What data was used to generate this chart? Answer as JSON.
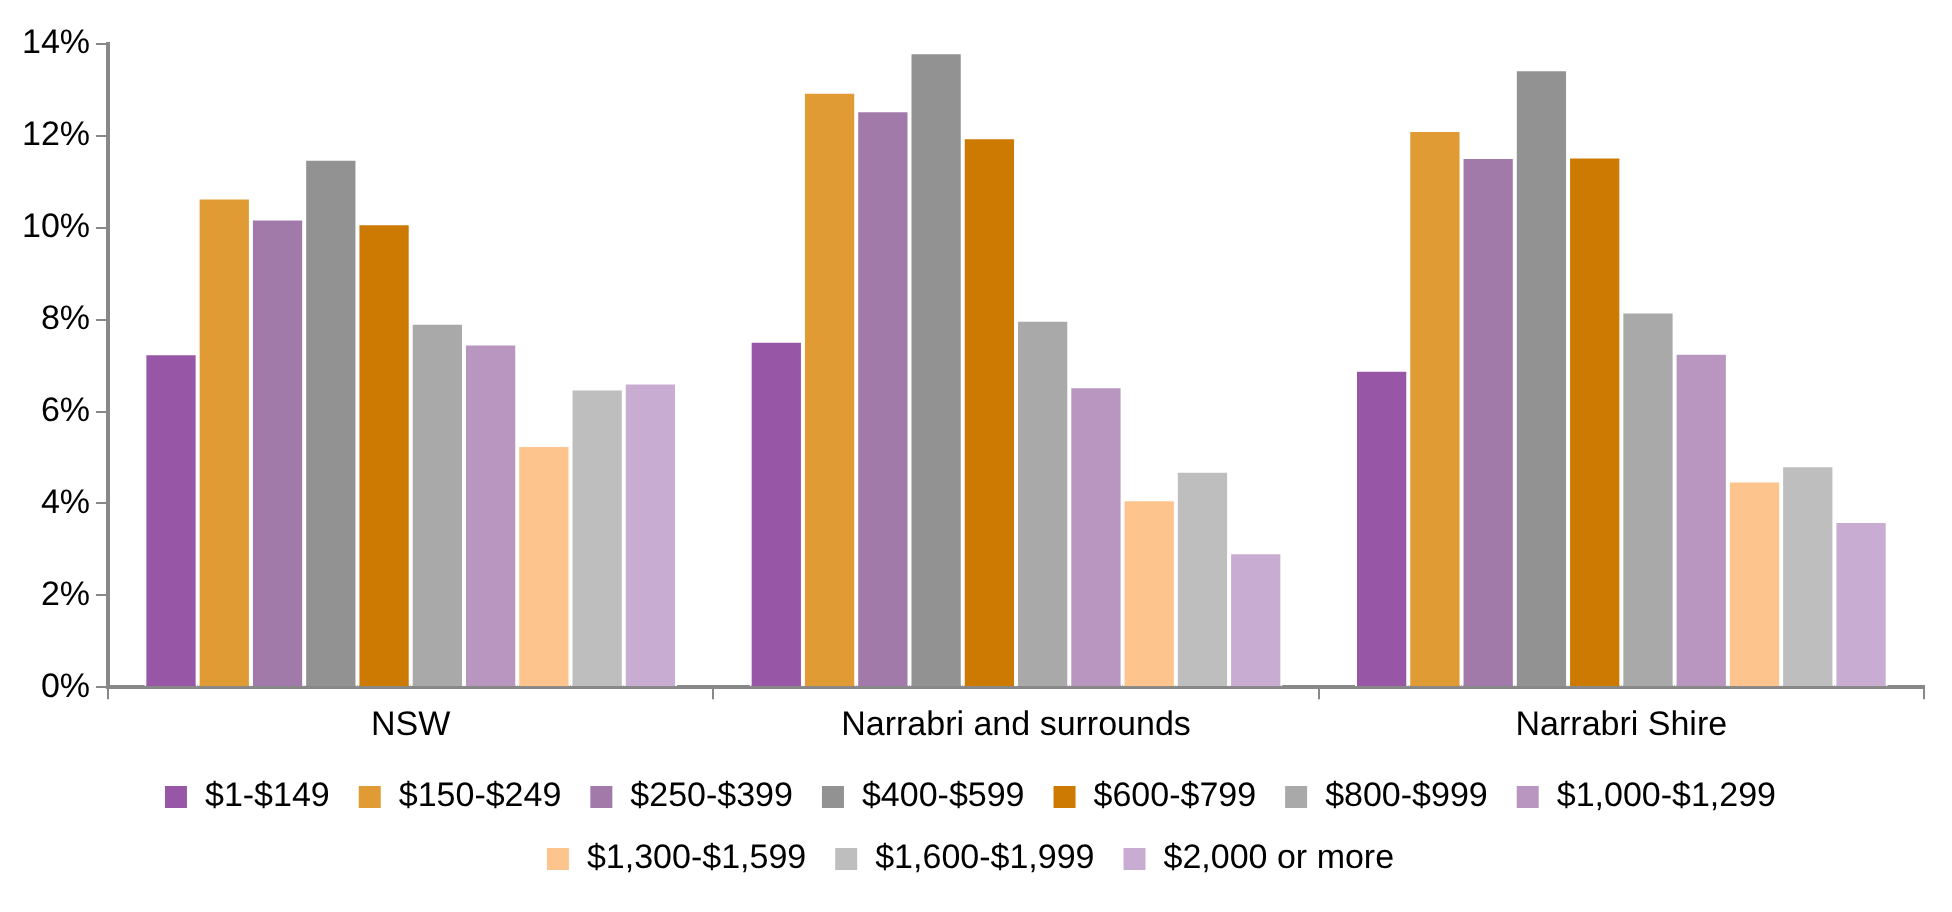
{
  "chart_data": {
    "type": "bar",
    "categories": [
      "NSW",
      "Narrabri and surrounds",
      "Narrabri Shire"
    ],
    "series": [
      {
        "name": "$1-$149",
        "color": "#9857a6",
        "values": [
          7.27,
          7.54,
          6.91
        ]
      },
      {
        "name": "$150-$249",
        "color": "#e19b35",
        "values": [
          10.66,
          12.96,
          12.13
        ]
      },
      {
        "name": "$250-$399",
        "color": "#a17aaa",
        "values": [
          10.2,
          12.56,
          11.54
        ]
      },
      {
        "name": "$400-$599",
        "color": "#929292",
        "values": [
          11.5,
          13.82,
          13.45
        ]
      },
      {
        "name": "$600-$799",
        "color": "#cd7a02",
        "values": [
          10.1,
          11.97,
          11.55
        ]
      },
      {
        "name": "$800-$999",
        "color": "#a9a9a9",
        "values": [
          7.93,
          8.0,
          8.18
        ]
      },
      {
        "name": "$1,000-$1,299",
        "color": "#b896bf",
        "values": [
          7.48,
          6.55,
          7.28
        ]
      },
      {
        "name": "$1,300-$1,599",
        "color": "#fec48e",
        "values": [
          5.27,
          4.09,
          4.5
        ]
      },
      {
        "name": "$1,600-$1,999",
        "color": "#bebebe",
        "values": [
          6.5,
          4.71,
          4.83
        ]
      },
      {
        "name": "$2,000 or more",
        "color": "#c9acd2",
        "values": [
          6.63,
          2.94,
          3.62
        ]
      }
    ],
    "ylim": [
      0,
      14
    ],
    "yticks": [
      {
        "value": 0,
        "label": "0%"
      },
      {
        "value": 2,
        "label": "2%"
      },
      {
        "value": 4,
        "label": "4%"
      },
      {
        "value": 6,
        "label": "6%"
      },
      {
        "value": 8,
        "label": "8%"
      },
      {
        "value": 10,
        "label": "10%"
      },
      {
        "value": 12,
        "label": "12%"
      },
      {
        "value": 14,
        "label": "14%"
      }
    ],
    "grid": false,
    "legend": "bottom"
  }
}
